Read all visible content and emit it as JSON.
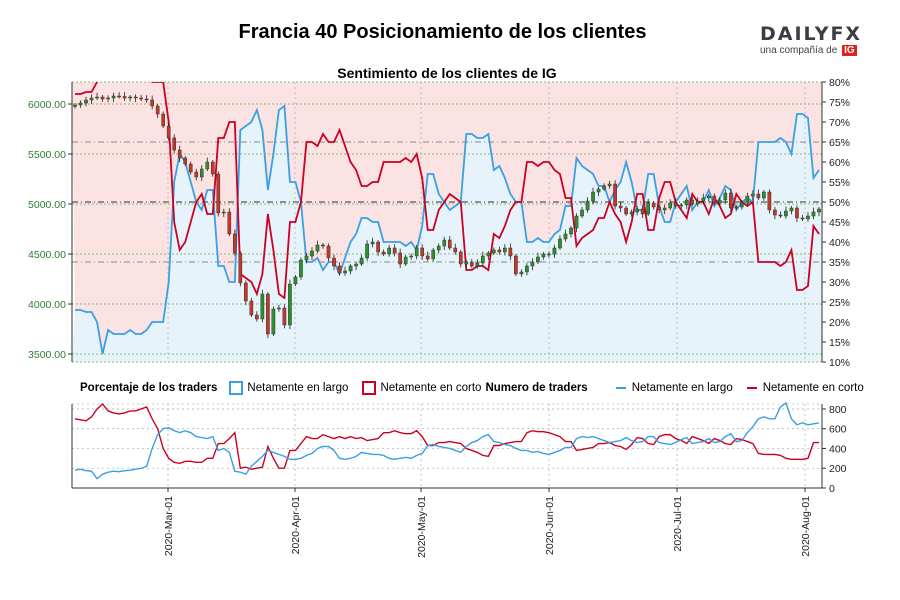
{
  "title": "Francia 40 Posicionamiento de los clientes",
  "logo": {
    "word_a": "DAILY",
    "word_b": "FX",
    "tagline": "una compañía de",
    "badge": "IG"
  },
  "legend": {
    "pct_label": "Porcentaje de los traders",
    "long_label": "Netamente en largo",
    "short_label": "Netamente en corto",
    "count_label": "Numero de traders",
    "long_label_2": "Netamente en largo",
    "short_label_2": "Netamente en corto"
  },
  "colors": {
    "long": "#3a9fe3",
    "short": "#cc0022",
    "long_fill": "#e6f3fb",
    "short_fill": "#fbe3e3",
    "price_tick": "#2e7d32",
    "candle_up": "#2f8f2f",
    "candle_down": "#c0392b"
  },
  "chart_data": [
    {
      "type": "candlestick",
      "title": "Sentimiento de los clientes de IG",
      "price_axis": {
        "ticks": [
          "3500.00",
          "4000.00",
          "4500.00",
          "5000.00",
          "5500.00",
          "6000.00"
        ],
        "range": [
          3420,
          6220
        ]
      },
      "pct_axis": {
        "ticks": [
          "10%",
          "15%",
          "20%",
          "25%",
          "30%",
          "35%",
          "40%",
          "45%",
          "50%",
          "55%",
          "60%",
          "65%",
          "70%",
          "75%",
          "80%"
        ],
        "range": [
          10,
          80
        ]
      },
      "x_range": [
        "2020-02-05",
        "2020-08-05"
      ],
      "price_close": [
        5990,
        6010,
        6040,
        6060,
        6070,
        6050,
        6060,
        6080,
        6075,
        6060,
        6070,
        6060,
        6050,
        6040,
        5980,
        5900,
        5780,
        5660,
        5540,
        5460,
        5400,
        5320,
        5270,
        5350,
        5420,
        5300,
        4910,
        4920,
        4700,
        4510,
        4210,
        4030,
        3890,
        3850,
        4100,
        3700,
        3950,
        3960,
        3790,
        4200,
        4270,
        4440,
        4480,
        4530,
        4590,
        4580,
        4460,
        4380,
        4310,
        4330,
        4380,
        4400,
        4460,
        4600,
        4620,
        4520,
        4500,
        4560,
        4510,
        4400,
        4470,
        4480,
        4560,
        4480,
        4450,
        4540,
        4580,
        4640,
        4560,
        4520,
        4400,
        4420,
        4380,
        4410,
        4480,
        4510,
        4540,
        4520,
        4560,
        4480,
        4300,
        4320,
        4380,
        4420,
        4470,
        4500,
        4500,
        4560,
        4650,
        4700,
        4760,
        4880,
        4940,
        5030,
        5120,
        5150,
        5180,
        5200,
        4980,
        4960,
        4900,
        4920,
        4950,
        4900,
        5010,
        4970,
        4940,
        4960,
        5010,
        4980,
        4990,
        5040,
        5000,
        5030,
        5060,
        5080,
        5010,
        5040,
        5110,
        4960,
        4970,
        5010,
        5080,
        5100,
        5060,
        5120,
        4940,
        4890,
        4880,
        4930,
        4960,
        4860,
        4850,
        4880,
        4920,
        4950
      ],
      "pct_long": [
        23,
        23,
        22.5,
        22.5,
        20,
        12,
        18,
        17,
        17,
        17,
        18,
        17,
        17,
        18,
        20,
        20,
        20,
        30,
        55,
        62,
        60,
        55,
        50,
        48,
        53,
        53,
        34,
        34,
        30,
        30,
        68,
        69,
        70,
        73,
        68,
        53,
        62,
        73,
        74,
        55,
        55,
        50,
        35,
        35,
        36,
        33,
        35,
        35,
        32,
        36,
        40,
        42,
        46,
        46,
        45,
        45,
        40,
        40,
        40,
        40,
        39,
        40,
        38,
        44,
        57,
        57,
        52,
        50,
        48,
        49,
        50,
        67,
        67,
        66,
        66,
        67,
        58,
        59,
        56,
        52,
        50,
        50,
        40,
        40,
        41,
        40,
        40,
        42,
        43,
        49,
        49,
        61,
        59,
        58,
        57,
        54,
        54,
        50,
        53,
        55,
        60,
        55,
        48,
        48,
        57,
        57,
        49,
        45,
        45,
        50,
        52,
        54,
        48,
        50,
        50,
        53,
        49,
        51,
        54,
        53,
        48,
        50,
        51,
        50,
        65,
        65,
        65,
        65,
        66,
        65,
        62,
        72,
        72,
        71,
        56,
        58
      ],
      "long_traders": [
        180,
        190,
        175,
        170,
        95,
        140,
        160,
        170,
        165,
        175,
        180,
        190,
        200,
        220,
        400,
        540,
        600,
        610,
        580,
        560,
        580,
        560,
        520,
        510,
        500,
        520,
        380,
        400,
        360,
        170,
        160,
        140,
        220,
        270,
        320,
        380,
        360,
        340,
        320,
        290,
        290,
        300,
        330,
        350,
        400,
        420,
        420,
        380,
        300,
        290,
        300,
        320,
        360,
        350,
        340,
        340,
        330,
        300,
        290,
        300,
        310,
        300,
        330,
        350,
        430,
        440,
        420,
        410,
        400,
        380,
        360,
        420,
        460,
        480,
        520,
        540,
        470,
        460,
        440,
        430,
        400,
        380,
        380,
        360,
        370,
        350,
        340,
        360,
        380,
        410,
        410,
        500,
        520,
        510,
        520,
        500,
        480,
        460,
        470,
        480,
        510,
        480,
        460,
        470,
        520,
        520,
        460,
        450,
        440,
        460,
        490,
        510,
        450,
        460,
        470,
        500,
        460,
        470,
        520,
        550,
        470,
        480,
        560,
        620,
        700,
        720,
        700,
        700,
        820,
        860,
        700,
        640,
        660,
        640,
        650,
        660
      ],
      "short_traders": [
        700,
        690,
        680,
        720,
        800,
        850,
        780,
        760,
        750,
        760,
        780,
        780,
        800,
        820,
        700,
        600,
        400,
        300,
        260,
        250,
        270,
        270,
        260,
        260,
        300,
        300,
        450,
        450,
        500,
        560,
        200,
        210,
        190,
        200,
        210,
        420,
        300,
        200,
        200,
        380,
        380,
        450,
        520,
        500,
        500,
        540,
        520,
        500,
        520,
        500,
        520,
        500,
        510,
        480,
        490,
        500,
        560,
        560,
        580,
        560,
        550,
        550,
        580,
        520,
        430,
        430,
        460,
        460,
        470,
        460,
        450,
        400,
        380,
        360,
        330,
        320,
        430,
        430,
        450,
        460,
        470,
        470,
        560,
        580,
        570,
        570,
        560,
        540,
        520,
        470,
        470,
        380,
        390,
        400,
        410,
        450,
        450,
        460,
        430,
        420,
        390,
        440,
        510,
        500,
        450,
        440,
        520,
        540,
        540,
        500,
        480,
        450,
        520,
        500,
        480,
        450,
        500,
        480,
        450,
        440,
        500,
        490,
        470,
        450,
        350,
        340,
        340,
        340,
        330,
        300,
        290,
        290,
        290,
        300,
        460,
        460
      ]
    }
  ]
}
